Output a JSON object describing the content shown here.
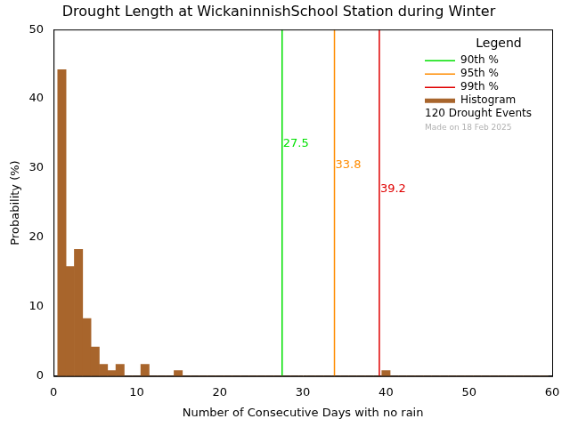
{
  "chart_data": {
    "type": "histogram",
    "title": "Drought Length at WickaninnishSchool Station during Winter",
    "x_label": "Number of Consecutive Days with no rain",
    "y_label": "Probability (%)",
    "bins": [
      0.5,
      1.5,
      2.5,
      3.5,
      4.5,
      5.5,
      6.5,
      7.5,
      8.5,
      9.5,
      10.5,
      11.5,
      12.5,
      13.5,
      14.5,
      15.5,
      16.5,
      17.5,
      18.5,
      19.5,
      20.5,
      21.5,
      22.5,
      23.5,
      24.5,
      25.5,
      26.5,
      27.5,
      28.5,
      29.5,
      30.5,
      31.5,
      32.5,
      33.5,
      34.5,
      35.5,
      36.5,
      37.5,
      38.5,
      39.5,
      40.5,
      41.5,
      42.5,
      43.5,
      44.5,
      45.5,
      46.5,
      47.5,
      48.5,
      49.5,
      50.5,
      51.5,
      52.5,
      53.5,
      54.5,
      55.5,
      56.5,
      57.5,
      58.5,
      59.5
    ],
    "series": [
      {
        "name": "Histogram",
        "color": "#a8652c",
        "type": "bar",
        "values": [
          44.2,
          15.8,
          18.3,
          8.3,
          4.2,
          1.7,
          0.8,
          1.7,
          0,
          0,
          1.7,
          0,
          0,
          0,
          0.8,
          0,
          0,
          0,
          0,
          0,
          0,
          0,
          0,
          0,
          0,
          0,
          0,
          0,
          0,
          0,
          0,
          0,
          0,
          0,
          0,
          0,
          0,
          0,
          0,
          0.8,
          0,
          0,
          0,
          0,
          0,
          0,
          0,
          0,
          0,
          0,
          0,
          0,
          0,
          0,
          0,
          0,
          0,
          0,
          0
        ]
      }
    ],
    "percentile_lines": [
      {
        "name": "90th %",
        "color": "#00e000",
        "value": 27.5
      },
      {
        "name": "95th %",
        "color": "#ff8c00",
        "value": 33.8
      },
      {
        "name": "99th %",
        "color": "#e00000",
        "value": 39.2
      }
    ],
    "legend": "upper right",
    "legend_title": "Legend",
    "annotations": [
      "120 Drought Events",
      "Made on 18 Feb 2025"
    ],
    "xlim": [
      0,
      60
    ],
    "xticks": [
      0,
      10,
      20,
      30,
      40,
      50,
      60
    ],
    "ylim": [
      0,
      50
    ],
    "yticks": [
      0,
      10,
      20,
      30,
      40,
      50
    ],
    "grid": false
  }
}
